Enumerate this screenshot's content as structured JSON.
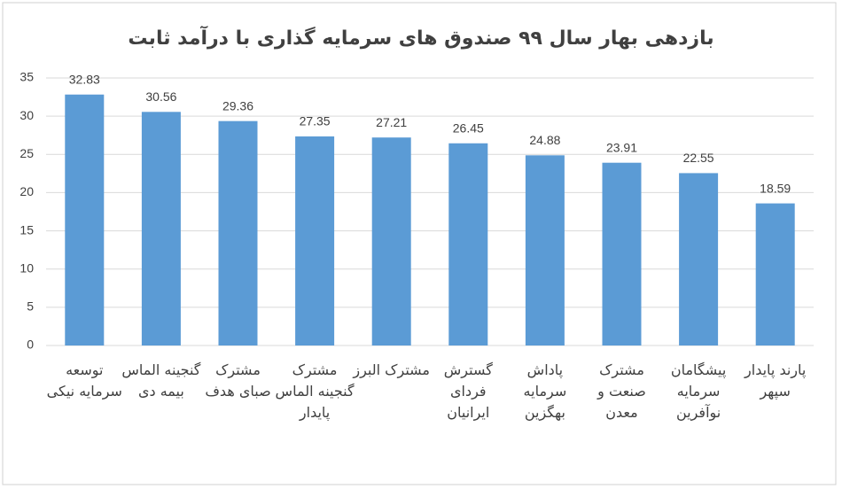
{
  "chart_data": {
    "type": "bar",
    "title": "بازدهی بهار سال ۹۹ صندوق های سرمایه گذاری با درآمد ثابت",
    "categories": [
      "توسعه سرمایه نیکی",
      "گنجینه الماس بیمه دی",
      "مشترک صبای هدف",
      "مشترک گنجینه الماس پایدار",
      "مشترک البرز",
      "گسترش فردای ایرانیان",
      "پاداش سرمایه بهگزین",
      "مشترک صنعت و معدن",
      "پیشگامان سرمایه نوآفرین",
      "پارند پایدار سپهر"
    ],
    "values": [
      32.83,
      30.56,
      29.36,
      27.35,
      27.21,
      26.45,
      24.88,
      23.91,
      22.55,
      18.59
    ],
    "color": "#5b9bd5",
    "ylim": [
      0,
      35
    ],
    "yticks": [
      0,
      5,
      10,
      15,
      20,
      25,
      30,
      35
    ],
    "grid": true
  }
}
